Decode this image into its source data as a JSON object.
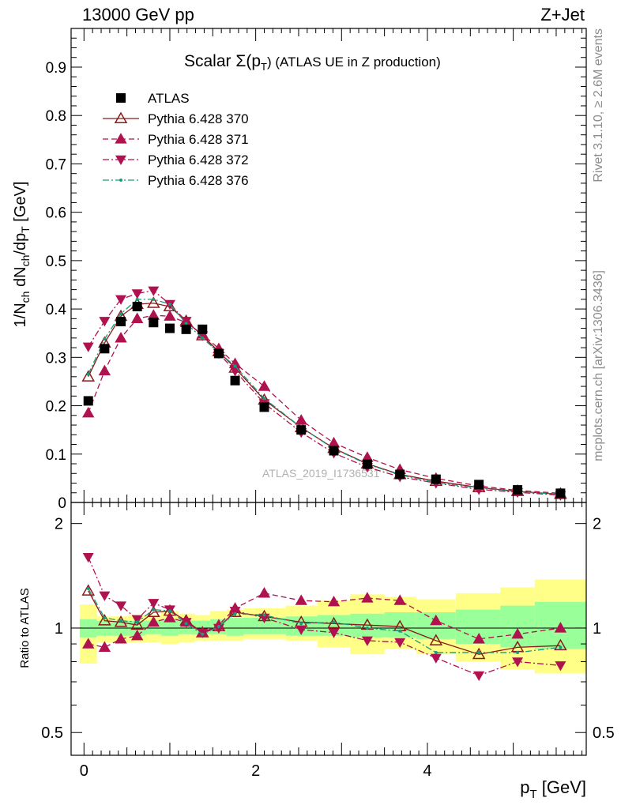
{
  "header": {
    "left": "13000 GeV pp",
    "right": "Z+Jet"
  },
  "side_labels": {
    "rivet": "Rivet 3.1.10, ≥ 2.6M events",
    "mcplots": "mcplots.cern.ch [arXiv:1306.3436]"
  },
  "watermark": "ATLAS_2019_I1736531",
  "colors": {
    "atlas": "#000000",
    "p370": "#8b1a1a",
    "p371": "#b0124f",
    "p372": "#b0124f",
    "p376": "#1a9a7a",
    "band_inner": "#99ff99",
    "band_outer": "#ffff88"
  },
  "chart_data": [
    {
      "type": "scatter",
      "title": "Scalar Σ(p_T) (ATLAS UE in Z production)",
      "title_main": "Scalar Σ(p",
      "title_sub": "T",
      "title_rest": ") (ATLAS UE in Z production)",
      "ylabel": "1/N_ch dN_ch/dp_T [GeV]",
      "ylim": [
        0,
        0.98
      ],
      "yticks": [
        {
          "v": 0,
          "label": "0"
        },
        {
          "v": 0.1,
          "label": "0.1"
        },
        {
          "v": 0.2,
          "label": "0.2"
        },
        {
          "v": 0.3,
          "label": "0.3"
        },
        {
          "v": 0.4,
          "label": "0.4"
        },
        {
          "v": 0.5,
          "label": "0.5"
        },
        {
          "v": 0.6,
          "label": "0.6"
        },
        {
          "v": 0.7,
          "label": "0.7"
        },
        {
          "v": 0.8,
          "label": "0.8"
        },
        {
          "v": 0.9,
          "label": "0.9"
        }
      ],
      "legend_position": "top-left",
      "x": [
        0.05,
        0.24,
        0.43,
        0.62,
        0.81,
        1.0,
        1.19,
        1.38,
        1.57,
        1.76,
        2.1,
        2.53,
        2.91,
        3.3,
        3.68,
        4.1,
        4.6,
        5.05,
        5.55
      ],
      "series": [
        {
          "name": "ATLAS",
          "key": "atlas",
          "marker": "square",
          "line": "none",
          "values": [
            0.21,
            0.318,
            0.374,
            0.405,
            0.372,
            0.36,
            0.358,
            0.358,
            0.308,
            0.252,
            0.197,
            0.15,
            0.107,
            0.079,
            0.058,
            0.048,
            0.037,
            0.026,
            0.019
          ]
        },
        {
          "name": "Pythia 6.428 370",
          "key": "p370",
          "marker": "triangle-up-open",
          "line": "solid",
          "values": [
            0.26,
            0.33,
            0.385,
            0.41,
            0.412,
            0.405,
            0.375,
            0.345,
            0.312,
            0.278,
            0.212,
            0.155,
            0.112,
            0.08,
            0.058,
            0.044,
            0.031,
            0.023,
            0.017
          ]
        },
        {
          "name": "Pythia 6.428 371",
          "key": "p371",
          "marker": "triangle-up",
          "line": "dashed",
          "values": [
            0.185,
            0.272,
            0.34,
            0.38,
            0.387,
            0.385,
            0.372,
            0.348,
            0.318,
            0.287,
            0.24,
            0.17,
            0.123,
            0.093,
            0.068,
            0.05,
            0.034,
            0.025,
            0.019
          ]
        },
        {
          "name": "Pythia 6.428 372",
          "key": "p372",
          "marker": "triangle-down",
          "line": "dashdot",
          "values": [
            0.322,
            0.375,
            0.42,
            0.432,
            0.438,
            0.41,
            0.375,
            0.345,
            0.308,
            0.272,
            0.205,
            0.145,
            0.102,
            0.073,
            0.053,
            0.04,
            0.027,
            0.021,
            0.015
          ]
        },
        {
          "name": "Pythia 6.428 376",
          "key": "p376",
          "marker": "dot",
          "line": "dashdot",
          "values": [
            0.265,
            0.338,
            0.39,
            0.42,
            0.42,
            0.41,
            0.37,
            0.34,
            0.31,
            0.282,
            0.215,
            0.155,
            0.111,
            0.079,
            0.057,
            0.041,
            0.03,
            0.022,
            0.017
          ]
        }
      ]
    },
    {
      "type": "line",
      "ylabel": "Ratio to ATLAS",
      "xlabel": "p_T [GeV]",
      "xlabel_main": "p",
      "xlabel_sub": "T",
      "xlabel_rest": " [GeV]",
      "xlim": [
        -0.15,
        5.85
      ],
      "xticks": [
        {
          "v": 0,
          "label": "0"
        },
        {
          "v": 2,
          "label": "2"
        },
        {
          "v": 4,
          "label": "4"
        }
      ],
      "ylim": [
        0.43,
        2.3
      ],
      "yscale": "log",
      "yticks": [
        {
          "v": 0.5,
          "label": "0.5"
        },
        {
          "v": 1,
          "label": "1"
        },
        {
          "v": 2,
          "label": "2"
        }
      ],
      "bin_edges": [
        -0.05,
        0.15,
        0.33,
        0.52,
        0.71,
        0.9,
        1.1,
        1.29,
        1.47,
        1.66,
        1.86,
        2.35,
        2.72,
        3.1,
        3.5,
        3.87,
        4.33,
        4.85,
        5.25,
        5.85
      ],
      "band_outer": [
        [
          0.79,
          1.17
        ],
        [
          0.91,
          1.08
        ],
        [
          0.91,
          1.08
        ],
        [
          0.91,
          1.09
        ],
        [
          0.91,
          1.09
        ],
        [
          0.9,
          1.12
        ],
        [
          0.91,
          1.1
        ],
        [
          0.92,
          1.09
        ],
        [
          0.92,
          1.12
        ],
        [
          0.92,
          1.13
        ],
        [
          0.93,
          1.14
        ],
        [
          0.92,
          1.16
        ],
        [
          0.88,
          1.2
        ],
        [
          0.84,
          1.25
        ],
        [
          0.87,
          1.23
        ],
        [
          0.84,
          1.21
        ],
        [
          0.8,
          1.26
        ],
        [
          0.76,
          1.31
        ],
        [
          0.74,
          1.38
        ]
      ],
      "band_inner": [
        [
          0.94,
          1.06
        ],
        [
          0.95,
          1.05
        ],
        [
          0.95,
          1.05
        ],
        [
          0.95,
          1.05
        ],
        [
          0.96,
          1.05
        ],
        [
          0.95,
          1.06
        ],
        [
          0.96,
          1.05
        ],
        [
          0.96,
          1.05
        ],
        [
          0.96,
          1.06
        ],
        [
          0.95,
          1.07
        ],
        [
          0.96,
          1.07
        ],
        [
          0.95,
          1.08
        ],
        [
          0.95,
          1.09
        ],
        [
          0.94,
          1.1
        ],
        [
          0.94,
          1.11
        ],
        [
          0.93,
          1.11
        ],
        [
          0.9,
          1.13
        ],
        [
          0.88,
          1.16
        ],
        [
          0.87,
          1.19
        ]
      ],
      "series": [
        {
          "name": "Pythia 6.428 370",
          "key": "p370",
          "marker": "triangle-up-open",
          "line": "solid",
          "values": [
            1.28,
            1.05,
            1.04,
            1.02,
            1.11,
            1.12,
            1.05,
            0.97,
            1.01,
            1.11,
            1.08,
            1.04,
            1.03,
            1.02,
            1.01,
            0.92,
            0.84,
            0.88,
            0.89
          ]
        },
        {
          "name": "Pythia 6.428 371",
          "key": "p371",
          "marker": "triangle-up",
          "line": "dashed",
          "values": [
            0.9,
            0.88,
            0.93,
            0.95,
            1.04,
            1.07,
            1.04,
            0.97,
            1.02,
            1.14,
            1.26,
            1.2,
            1.19,
            1.22,
            1.2,
            1.05,
            0.93,
            0.96,
            1.0
          ]
        },
        {
          "name": "Pythia 6.428 372",
          "key": "p372",
          "marker": "triangle-down",
          "line": "dashdot",
          "values": [
            1.6,
            1.24,
            1.16,
            1.06,
            1.18,
            1.13,
            1.04,
            0.97,
            1.0,
            1.12,
            1.07,
            0.99,
            0.97,
            0.92,
            0.91,
            0.82,
            0.73,
            0.8,
            0.78
          ]
        },
        {
          "name": "Pythia 6.428 376",
          "key": "p376",
          "marker": "dot",
          "line": "dashdot",
          "values": [
            1.3,
            1.07,
            1.05,
            1.04,
            1.13,
            1.12,
            1.03,
            0.96,
            1.01,
            1.1,
            1.09,
            1.03,
            1.04,
            1.0,
            0.98,
            0.85,
            0.85,
            0.85,
            0.88
          ]
        }
      ]
    }
  ]
}
